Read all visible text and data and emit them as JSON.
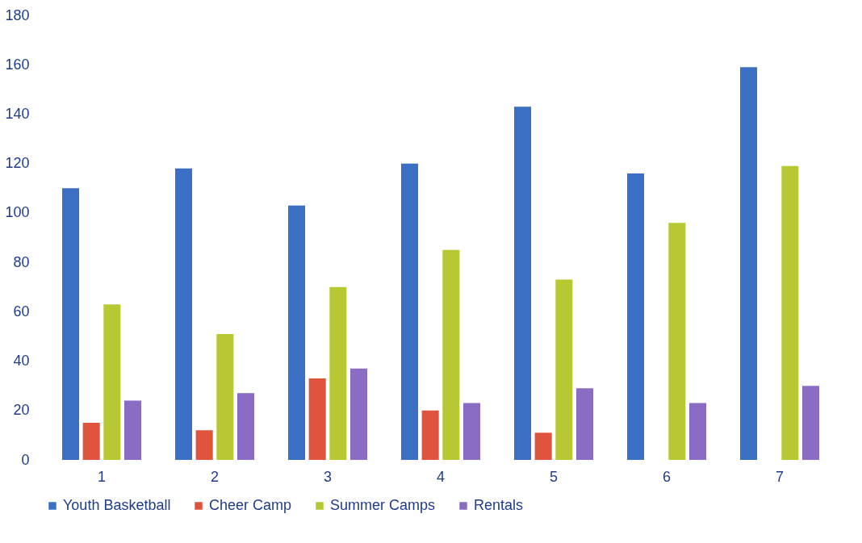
{
  "chart_data": {
    "type": "bar",
    "categories": [
      "1",
      "2",
      "3",
      "4",
      "5",
      "6",
      "7"
    ],
    "series": [
      {
        "name": "Youth Basketball",
        "color": "#3a6fc4",
        "values": [
          110,
          118,
          103,
          120,
          143,
          116,
          159
        ]
      },
      {
        "name": "Cheer Camp",
        "color": "#e0533c",
        "values": [
          15,
          12,
          33,
          20,
          11,
          null,
          null
        ]
      },
      {
        "name": "Summer Camps",
        "color": "#b8c832",
        "values": [
          63,
          51,
          70,
          85,
          73,
          96,
          119
        ]
      },
      {
        "name": "Rentals",
        "color": "#8a6cc2",
        "values": [
          24,
          27,
          37,
          23,
          29,
          23,
          30
        ]
      }
    ],
    "ylim": [
      0,
      180
    ],
    "yticks": [
      0,
      20,
      40,
      60,
      80,
      100,
      120,
      140,
      160,
      180
    ],
    "grid": false,
    "legend": "bottom"
  }
}
